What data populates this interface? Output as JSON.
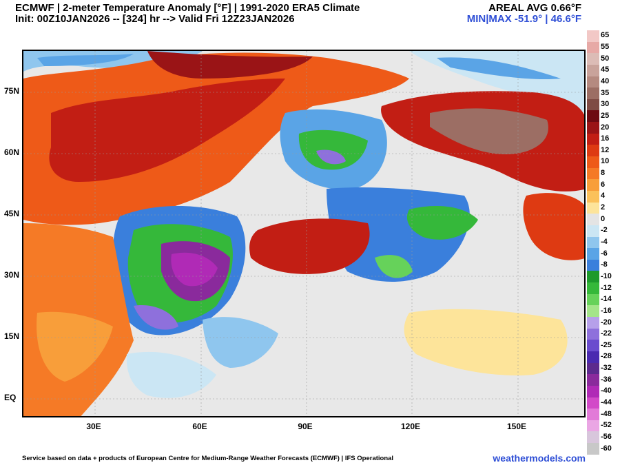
{
  "header": {
    "title_line1": "ECMWF | 2-meter Temperature Anomaly [°F] | 1991-2020 ERA5 Climate",
    "title_line2": "Init: 00Z10JAN2026 -- [324] hr --> Valid Fri 12Z23JAN2026",
    "areal_avg": "AREAL AVG 0.66°F",
    "min_max": "MIN|MAX -51.9° | 46.6°F"
  },
  "latitude_labels": [
    "75N",
    "60N",
    "45N",
    "30N",
    "15N",
    "EQ"
  ],
  "longitude_labels": [
    "30E",
    "60E",
    "90E",
    "120E",
    "150E"
  ],
  "colorbar": {
    "labels": [
      "65",
      "55",
      "50",
      "45",
      "40",
      "35",
      "30",
      "25",
      "20",
      "16",
      "12",
      "10",
      "8",
      "6",
      "4",
      "2",
      "0",
      "-2",
      "-4",
      "-6",
      "-8",
      "-10",
      "-12",
      "-14",
      "-16",
      "-20",
      "-22",
      "-25",
      "-28",
      "-32",
      "-36",
      "-40",
      "-44",
      "-48",
      "-52",
      "-56",
      "-60"
    ],
    "colors": [
      "#f2c8c6",
      "#e7a9a6",
      "#dcbcb6",
      "#c9a39b",
      "#b58a80",
      "#9c6e64",
      "#7e4b44",
      "#6d0a12",
      "#9a1416",
      "#c21e14",
      "#de3a12",
      "#ee5a18",
      "#f57a26",
      "#f89e3a",
      "#fbc15a",
      "#fde49a",
      "#e4e4e4",
      "#cbe6f4",
      "#8fc6ee",
      "#5aa4e6",
      "#3a7fdc",
      "#1d9a2c",
      "#35b83a",
      "#66d25a",
      "#a4e58a",
      "#b6a0ea",
      "#8e70dc",
      "#6a4cce",
      "#4a2ab0",
      "#5c2a8e",
      "#8a2a9c",
      "#b02ab6",
      "#d24ac8",
      "#e27ad8",
      "#eaa6e4",
      "#d8c6dc",
      "#c8c8c8"
    ]
  },
  "footer": {
    "credit": "Service based on data + products of European Centre for Medium-Range Weather Forecasts (ECMWF) | IFS Operational",
    "site": "weathermodels.com"
  }
}
